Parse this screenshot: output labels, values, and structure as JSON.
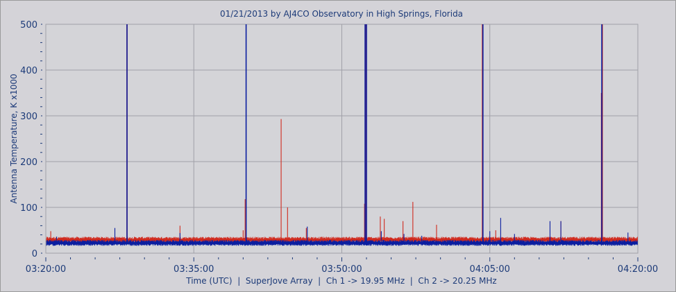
{
  "chart_data": {
    "type": "line",
    "title": "01/21/2013  by  AJ4CO Observatory  in  High Springs, Florida",
    "xlabel": "Time (UTC)  |  SuperJove Array  |  Ch 1 -> 19.95 MHz  |  Ch 2 -> 20.25 MHz",
    "ylabel": "Antenna Temperature, K x1000",
    "xlim_minutes_after_0320": [
      0,
      60
    ],
    "ylim": [
      0,
      500
    ],
    "x_tick_labels": [
      "03:20:00",
      "03:35:00",
      "03:50:00",
      "04:05:00",
      "04:20:00"
    ],
    "y_tick_labels": [
      "0",
      "100",
      "200",
      "300",
      "400",
      "500"
    ],
    "grid": true,
    "colors": {
      "ch1": "#0a1ea0",
      "ch2": "#d02a1e",
      "grid": "#a0a0a8",
      "text": "#1c3a78"
    },
    "series": [
      {
        "name": "Ch 1 (19.95 MHz)",
        "color": "#0a1ea0",
        "baseline": 22,
        "noise": 4,
        "spikes": [
          [
            1.1,
            36
          ],
          [
            7.0,
            55
          ],
          [
            8.23,
            500
          ],
          [
            13.6,
            44
          ],
          [
            20.3,
            500
          ],
          [
            26.5,
            58
          ],
          [
            32.36,
            500
          ],
          [
            32.5,
            500
          ],
          [
            34.0,
            48
          ],
          [
            36.3,
            42
          ],
          [
            38.1,
            38
          ],
          [
            44.3,
            500
          ],
          [
            45.0,
            48
          ],
          [
            46.1,
            77
          ],
          [
            47.5,
            42
          ],
          [
            51.1,
            70
          ],
          [
            52.2,
            70
          ],
          [
            56.35,
            500
          ],
          [
            59.0,
            45
          ]
        ]
      },
      {
        "name": "Ch 2 (20.25 MHz)",
        "color": "#d02a1e",
        "baseline": 29,
        "noise": 4,
        "spikes": [
          [
            0.5,
            48
          ],
          [
            8.23,
            500
          ],
          [
            13.6,
            60
          ],
          [
            20.2,
            118
          ],
          [
            20.0,
            50
          ],
          [
            23.85,
            293
          ],
          [
            24.5,
            100
          ],
          [
            26.4,
            55
          ],
          [
            32.3,
            108
          ],
          [
            32.4,
            500
          ],
          [
            33.9,
            80
          ],
          [
            34.3,
            75
          ],
          [
            36.2,
            70
          ],
          [
            37.2,
            112
          ],
          [
            39.6,
            62
          ],
          [
            44.25,
            500
          ],
          [
            45.6,
            50
          ],
          [
            52.2,
            70
          ],
          [
            56.3,
            350
          ],
          [
            56.4,
            500
          ]
        ]
      }
    ]
  }
}
